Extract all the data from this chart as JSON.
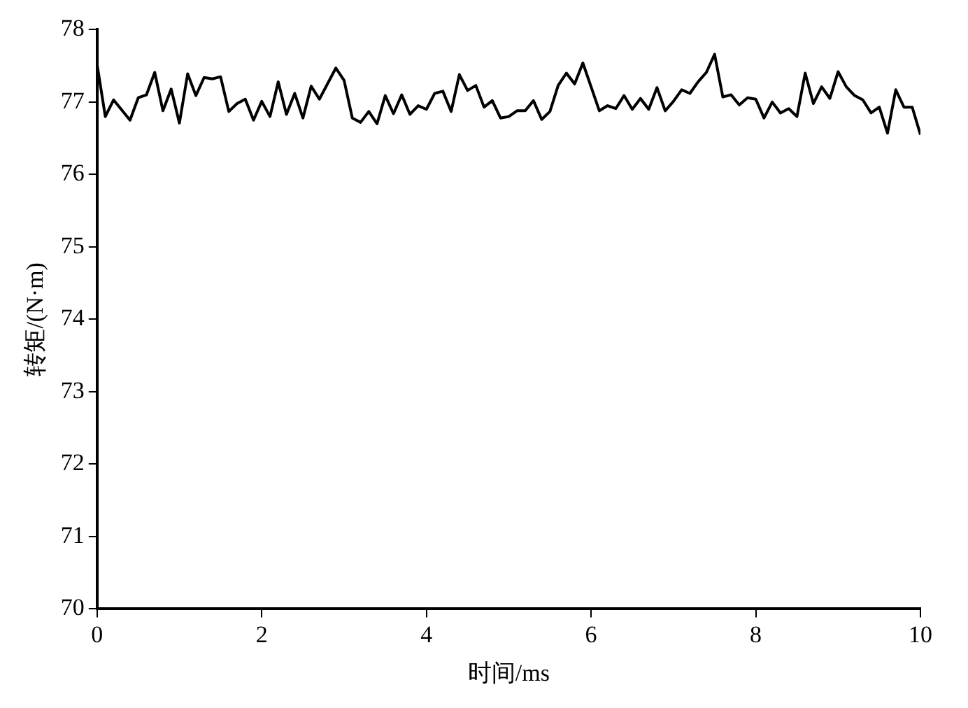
{
  "chart_data": {
    "type": "line",
    "xlabel": "时间/ms",
    "ylabel": "转矩/(N·m)",
    "x": [
      0,
      0.1,
      0.2,
      0.4,
      0.5,
      0.6,
      0.7,
      0.8,
      0.9,
      1.0,
      1.1,
      1.2,
      1.3,
      1.4,
      1.5,
      1.6,
      1.7,
      1.8,
      1.9,
      2.0,
      2.1,
      2.2,
      2.3,
      2.4,
      2.5,
      2.6,
      2.7,
      2.9,
      3.0,
      3.1,
      3.2,
      3.3,
      3.4,
      3.5,
      3.6,
      3.7,
      3.8,
      3.9,
      4.0,
      4.1,
      4.2,
      4.3,
      4.4,
      4.5,
      4.6,
      4.7,
      4.8,
      4.9,
      5.0,
      5.1,
      5.2,
      5.3,
      5.4,
      5.5,
      5.6,
      5.7,
      5.8,
      5.9,
      6.0,
      6.1,
      6.2,
      6.3,
      6.4,
      6.5,
      6.6,
      6.7,
      6.8,
      6.9,
      7.0,
      7.1,
      7.2,
      7.3,
      7.4,
      7.5,
      7.6,
      7.7,
      7.8,
      7.9,
      8.0,
      8.1,
      8.2,
      8.3,
      8.4,
      8.5,
      8.6,
      8.7,
      8.8,
      8.9,
      9.0,
      9.1,
      9.2,
      9.3,
      9.4,
      9.5,
      9.6,
      9.7,
      9.8,
      9.9,
      10.0
    ],
    "series": [
      {
        "color": "#000000",
        "values": [
          77.52,
          76.8,
          77.03,
          76.75,
          77.06,
          77.1,
          77.41,
          76.88,
          77.18,
          76.71,
          77.39,
          77.09,
          77.34,
          77.32,
          77.35,
          76.87,
          76.98,
          77.04,
          76.75,
          77.01,
          76.8,
          77.28,
          76.83,
          77.12,
          76.78,
          77.22,
          77.04,
          77.47,
          77.3,
          76.78,
          76.72,
          76.87,
          76.7,
          77.09,
          76.84,
          77.1,
          76.83,
          76.95,
          76.9,
          77.12,
          77.15,
          76.87,
          77.38,
          77.16,
          77.23,
          76.93,
          77.02,
          76.78,
          76.8,
          76.88,
          76.88,
          77.02,
          76.76,
          76.87,
          77.23,
          77.4,
          77.25,
          77.54,
          77.21,
          76.88,
          76.95,
          76.91,
          77.09,
          76.9,
          77.05,
          76.9,
          77.2,
          76.88,
          77.01,
          77.17,
          77.12,
          77.28,
          77.41,
          77.66,
          77.07,
          77.1,
          76.96,
          77.06,
          77.04,
          76.78,
          77.0,
          76.85,
          76.91,
          76.8,
          77.4,
          76.98,
          77.21,
          77.05,
          77.42,
          77.21,
          77.09,
          77.03,
          76.85,
          76.93,
          76.57,
          77.17,
          76.93,
          76.93,
          76.55
        ]
      }
    ],
    "xlim": [
      0,
      10
    ],
    "xticks": [
      0,
      2,
      4,
      6,
      8,
      10
    ],
    "ylim": [
      70,
      78
    ],
    "yticks": [
      70,
      71,
      72,
      73,
      74,
      75,
      76,
      77,
      78
    ],
    "grid": false,
    "legend": false,
    "marker": "none",
    "line_style": "solid"
  }
}
